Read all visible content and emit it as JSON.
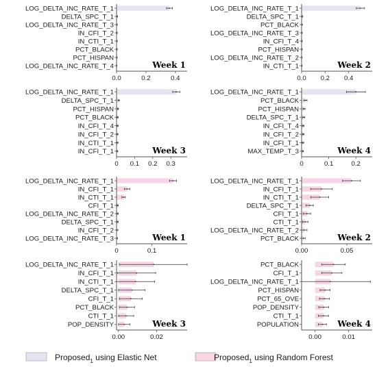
{
  "colors": {
    "elastic_net": "#e5e5f2",
    "random_forest": "#f6d5e4",
    "axis": "#555555",
    "error_bar": "#333333"
  },
  "legend": {
    "elastic_net": {
      "main": "Proposed",
      "sub": "1",
      "rest": " using Elastic Net"
    },
    "random_forest": {
      "main": "Proposed",
      "sub": "1",
      "rest": " using Random Forest"
    }
  },
  "chart_data": [
    {
      "type": "bar",
      "orientation": "horizontal",
      "method": "elastic_net",
      "week_label": "Week 1",
      "categories": [
        "LOG_DELTA_INC_RATE_T_1",
        "DELTA_SPC_T_1",
        "LOG_DELTA_INC_RATE_T_3",
        "IN_CFI_T_2",
        "IN_CTI_T_1",
        "PCT_BLACK",
        "PCT_HISPAN",
        "LOG_DELTA_INC_RATE_T_4"
      ],
      "values": [
        0.36,
        0.004,
        0.003,
        0.003,
        0.003,
        0.003,
        0.002,
        0.001
      ],
      "errors": [
        0.02,
        0.003,
        0.002,
        0.002,
        0.002,
        0.002,
        0.002,
        0.002
      ],
      "xlim": [
        0,
        0.48
      ],
      "xticks": [
        0,
        0.2,
        0.4
      ],
      "xtick_labels": [
        "0.0",
        "0.2",
        "0.4"
      ]
    },
    {
      "type": "bar",
      "orientation": "horizontal",
      "method": "elastic_net",
      "week_label": "Week 2",
      "categories": [
        "LOG_DELTA_INC_RATE_T_1",
        "DELTA_SPC_T_1",
        "PCT_BLACK",
        "LOG_DELTA_INC_RATE_T_3",
        "IN_CFI_T_4",
        "PCT_HISPAN",
        "LOG_DELTA_INC_RATE_T_2",
        "IN_CTI_T_1"
      ],
      "values": [
        0.5,
        0.006,
        0.004,
        0.003,
        0.003,
        0.003,
        0.002,
        0.002
      ],
      "errors": [
        0.035,
        0.004,
        0.003,
        0.002,
        0.002,
        0.002,
        0.002,
        0.002
      ],
      "xlim": [
        0,
        0.6
      ],
      "xticks": [
        0,
        0.2,
        0.4
      ],
      "xtick_labels": [
        "0.0",
        "0.2",
        "0.4"
      ]
    },
    {
      "type": "bar",
      "orientation": "horizontal",
      "method": "elastic_net",
      "week_label": "Week 3",
      "categories": [
        "LOG_DELTA_INC_RATE_T_1",
        "DELTA_SPC_T_1",
        "PCT_HISPAN",
        "PCT_BLACK",
        "IN_CFI_T_4",
        "IN_CFI_T_2",
        "IN_CTI_T_1",
        "IN_CFI_T_1"
      ],
      "values": [
        0.33,
        0.012,
        0.008,
        0.006,
        0.006,
        0.005,
        0.005,
        0.004
      ],
      "errors": [
        0.02,
        0.004,
        0.003,
        0.003,
        0.003,
        0.003,
        0.003,
        0.003
      ],
      "xlim": [
        0,
        0.39
      ],
      "xticks": [
        0,
        0.1,
        0.2,
        0.3
      ],
      "xtick_labels": [
        "0",
        "0.1",
        "0.2",
        "0.3"
      ]
    },
    {
      "type": "bar",
      "orientation": "horizontal",
      "method": "elastic_net",
      "week_label": "Week 4",
      "categories": [
        "LOG_DELTA_INC_RATE_T_1",
        "PCT_BLACK",
        "PCT_HISPAN",
        "DELTA_SPC_T_1",
        "IN_CFI_T_4",
        "IN_CFI_T_2",
        "IN_CFI_T_1",
        "MAX_TEMP_T_3"
      ],
      "values": [
        0.2,
        0.014,
        0.009,
        0.008,
        0.006,
        0.006,
        0.005,
        0.004
      ],
      "errors": [
        0.035,
        0.006,
        0.004,
        0.004,
        0.003,
        0.003,
        0.003,
        0.003
      ],
      "xlim": [
        0,
        0.26
      ],
      "xticks": [
        0,
        0.1,
        0.2
      ],
      "xtick_labels": [
        "0",
        "0.1",
        "0.2"
      ]
    },
    {
      "type": "bar",
      "orientation": "horizontal",
      "method": "random_forest",
      "week_label": "Week 1",
      "categories": [
        "LOG_DELTA_INC_RATE_T_1",
        "IN_CFI_T_1",
        "IN_CTI_T_1",
        "CFI_T_1",
        "LOG_DELTA_INC_RATE_T_2",
        "DELTA_SPC_T_1",
        "IN_CFI_T_2",
        "LOG_DELTA_INC_RATE_T_3"
      ],
      "values": [
        0.16,
        0.03,
        0.02,
        0.003,
        0.003,
        0.003,
        0.002,
        0.001
      ],
      "errors": [
        0.01,
        0.008,
        0.005,
        0.002,
        0.002,
        0.002,
        0.002,
        0.002
      ],
      "xlim": [
        0,
        0.2
      ],
      "xticks": [
        0,
        0.1
      ],
      "xtick_labels": [
        "0",
        "0.1"
      ]
    },
    {
      "type": "bar",
      "orientation": "horizontal",
      "method": "random_forest",
      "week_label": "Week 2",
      "categories": [
        "LOG_DELTA_INC_RATE_T_1",
        "IN_CFI_T_1",
        "IN_CTI_T_1",
        "DELTA_SPC_T_1",
        "CFI_T_1",
        "CTI_T_1",
        "LOG_DELTA_INC_RATE_T_2",
        "PCT_BLACK"
      ],
      "values": [
        0.055,
        0.022,
        0.02,
        0.009,
        0.006,
        0.004,
        0.003,
        0.002
      ],
      "errors": [
        0.01,
        0.012,
        0.01,
        0.004,
        0.004,
        0.003,
        0.003,
        0.002
      ],
      "xlim": [
        0,
        0.078
      ],
      "xticks": [
        0,
        0.05
      ],
      "xtick_labels": [
        "0.00",
        "0.05"
      ]
    },
    {
      "type": "bar",
      "orientation": "horizontal",
      "method": "random_forest",
      "week_label": "Week 3",
      "categories": [
        "LOG_DELTA_INC_RATE_T_1",
        "IN_CFI_T_1",
        "IN_CTI_T_1",
        "DELTA_SPC_T_1",
        "CFI_T_1",
        "PCT_BLACK",
        "CTI_T_1",
        "POP_DENSITY"
      ],
      "values": [
        0.0185,
        0.0095,
        0.009,
        0.007,
        0.0065,
        0.0045,
        0.004,
        0.003
      ],
      "errors": [
        0.018,
        0.01,
        0.01,
        0.007,
        0.006,
        0.004,
        0.004,
        0.003
      ],
      "xlim": [
        -0.001,
        0.036
      ],
      "xticks": [
        0,
        0.02
      ],
      "xtick_labels": [
        "0.00",
        "0.02"
      ]
    },
    {
      "type": "bar",
      "orientation": "horizontal",
      "method": "random_forest",
      "week_label": "Week 4",
      "categories": [
        "PCT_BLACK",
        "CFI_T_1",
        "LOG_DELTA_INC_RATE_T_1",
        "PCT_HISPAN",
        "PCT_65_OVE",
        "POP_DENSITY",
        "CTI_T_1",
        "POPULATION"
      ],
      "values": [
        0.0055,
        0.005,
        0.0045,
        0.003,
        0.0028,
        0.0026,
        0.0025,
        0.0022
      ],
      "errors": [
        0.0035,
        0.003,
        0.012,
        0.0015,
        0.0015,
        0.0015,
        0.0015,
        0.0012
      ],
      "xlim": [
        -0.004,
        0.017
      ],
      "xticks": [
        0,
        0.01
      ],
      "xtick_labels": [
        "0.00",
        "0.01"
      ]
    }
  ]
}
